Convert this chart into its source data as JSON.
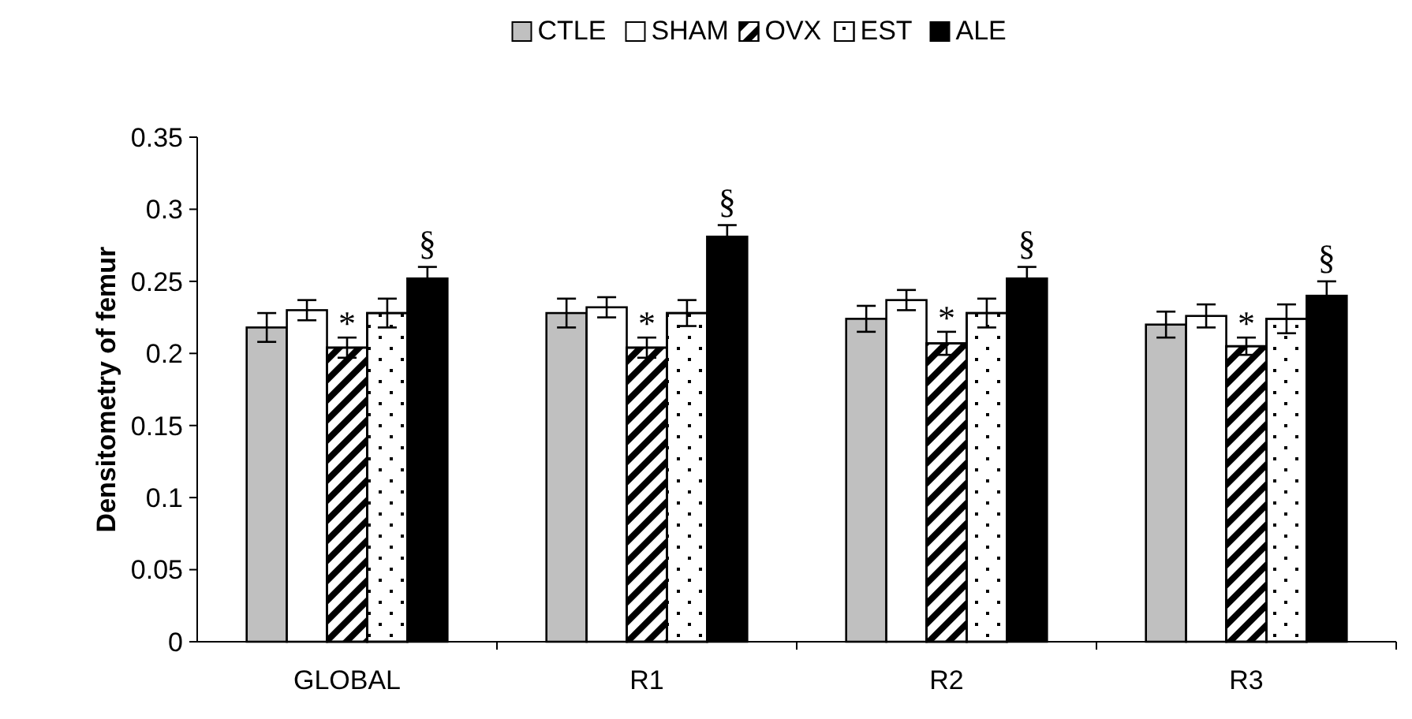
{
  "chart_data": {
    "type": "bar",
    "ylabel": "Densitometry of femur",
    "categories": [
      "GLOBAL",
      "R1",
      "R2",
      "R3"
    ],
    "ylim": [
      0,
      0.35
    ],
    "yticks": [
      0,
      0.05,
      0.1,
      0.15,
      0.2,
      0.25,
      0.3,
      0.35
    ],
    "grid": false,
    "legend": "top",
    "series": [
      {
        "name": "CTLE",
        "color": "#c0c0c0",
        "values": [
          0.218,
          0.228,
          0.224,
          0.22
        ],
        "errors": [
          0.01,
          0.01,
          0.009,
          0.009
        ]
      },
      {
        "name": "SHAM",
        "color": "#ffffff",
        "values": [
          0.23,
          0.232,
          0.237,
          0.226
        ],
        "errors": [
          0.007,
          0.007,
          0.007,
          0.008
        ]
      },
      {
        "name": "OVX",
        "color": "#ffffff",
        "values": [
          0.204,
          0.204,
          0.207,
          0.205
        ],
        "errors": [
          0.007,
          0.007,
          0.008,
          0.006
        ]
      },
      {
        "name": "EST",
        "color": "#ffffff",
        "values": [
          0.228,
          0.228,
          0.228,
          0.224
        ],
        "errors": [
          0.01,
          0.009,
          0.01,
          0.01
        ]
      },
      {
        "name": "ALE",
        "color": "#000000",
        "values": [
          0.252,
          0.281,
          0.252,
          0.24
        ],
        "errors": [
          0.008,
          0.008,
          0.008,
          0.01
        ]
      }
    ],
    "annotations": [
      {
        "text": "*",
        "x": "GLOBAL",
        "y": 0.211
      },
      {
        "text": "*",
        "x": "R1",
        "y": 0.211
      },
      {
        "text": "*",
        "x": "R2",
        "y": 0.215
      },
      {
        "text": "*",
        "x": "R3",
        "y": 0.211
      },
      "§",
      "§",
      "§",
      "§"
    ]
  }
}
